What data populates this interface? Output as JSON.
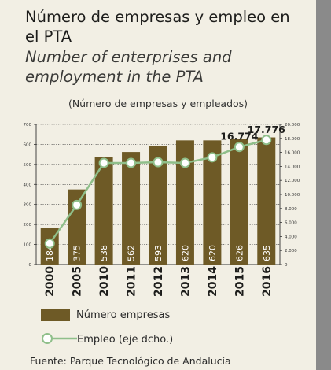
{
  "title_es": "Número de empresas y empleo en el PTA",
  "title_en": "Number of enterprises and employment in the PTA",
  "subtitle": "(Número de empresas y empleados)",
  "legend": {
    "bars": "Número empresas",
    "line": "Empleo (eje dcho.)"
  },
  "source": "Fuente: Parque Tecnológico de Andalucía",
  "colors": {
    "bar": "#6e5a26",
    "line": "#8fbf8a",
    "marker_fill": "#ffffff",
    "background": "#f2efe4",
    "grid": "#333333"
  },
  "chart_data": {
    "type": "bar",
    "categories": [
      "2000",
      "2005",
      "2010",
      "2011",
      "2012",
      "2013",
      "2014",
      "2015",
      "2016"
    ],
    "series": [
      {
        "name": "Número empresas",
        "type": "bar",
        "axis": "left",
        "values": [
          184,
          375,
          538,
          562,
          593,
          620,
          620,
          626,
          635
        ],
        "labels": [
          "184",
          "375",
          "538",
          "562",
          "593",
          "620",
          "620",
          "626",
          "635"
        ]
      },
      {
        "name": "Empleo (eje dcho.)",
        "type": "line",
        "axis": "right",
        "values": [
          3000,
          8500,
          14500,
          14500,
          14600,
          14500,
          15300,
          16774,
          17776
        ],
        "labels": [
          "",
          "",
          "",
          "",
          "",
          "",
          "",
          "16.774",
          "17.776"
        ]
      }
    ],
    "y_left": {
      "range": [
        0,
        700
      ],
      "ticks": [
        0,
        100,
        200,
        300,
        400,
        500,
        600,
        700
      ],
      "tick_labels": [
        "0",
        "100",
        "200",
        "300",
        "400",
        "500",
        "600",
        "700"
      ]
    },
    "y_right": {
      "range": [
        0,
        20000
      ],
      "ticks": [
        0,
        2000,
        4000,
        6000,
        8000,
        10000,
        12000,
        14000,
        16000,
        18000,
        20000
      ],
      "tick_labels": [
        "0",
        "2.000",
        "4.000",
        "6.000",
        "8.000",
        "10.000",
        "12.000",
        "14.000",
        "16.000",
        "18.000",
        "20.000"
      ]
    },
    "grid": "dotted horizontal",
    "legend_position": "bottom"
  }
}
